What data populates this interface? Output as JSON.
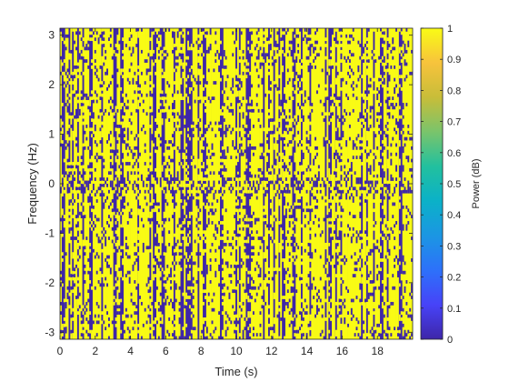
{
  "chart_data": {
    "type": "heatmap",
    "title": "",
    "xlabel": "Time (s)",
    "ylabel": "Frequency (Hz)",
    "xlim": [
      0,
      20
    ],
    "ylim": [
      -3.14159,
      3.14159
    ],
    "x_ticks": [
      0,
      2,
      4,
      6,
      8,
      10,
      12,
      14,
      16,
      18
    ],
    "y_ticks": [
      -3,
      -2,
      -1,
      0,
      1,
      2,
      3
    ],
    "colorbar": {
      "label": "Power (dB)",
      "range": [
        0,
        1
      ],
      "ticks": [
        0,
        0.1,
        0.2,
        0.3,
        0.4,
        0.5,
        0.6,
        0.7,
        0.8,
        0.9,
        1
      ],
      "colormap": [
        "#3e26a8",
        "#4743f8",
        "#2d71fa",
        "#1b96e3",
        "#0bb1c8",
        "#22c09e",
        "#7ac46b",
        "#c8bd39",
        "#f7c33c",
        "#f9fb15"
      ]
    },
    "value_colors": {
      "low": "#3e26a8",
      "high": "#f9fb15"
    },
    "grid": false,
    "time_columns": [
      1,
      0,
      0,
      1,
      1,
      0,
      1,
      0,
      1,
      1,
      0,
      1,
      1,
      0,
      1,
      1,
      1,
      0,
      0,
      1,
      1,
      1,
      1,
      1,
      0,
      1,
      1,
      1,
      1,
      1,
      1,
      0,
      0,
      1,
      1,
      0,
      0,
      1,
      1,
      1,
      1,
      1,
      1,
      1,
      1,
      0,
      1,
      1,
      1,
      1,
      1,
      1,
      0,
      1,
      0,
      0,
      1,
      1,
      1,
      0,
      0,
      1,
      1,
      1,
      1,
      1,
      0,
      1,
      1,
      1,
      0,
      0,
      1,
      0,
      0,
      0,
      0,
      1,
      1,
      1,
      0,
      1,
      1,
      0,
      0,
      1,
      1,
      1,
      1,
      1,
      1,
      1,
      1,
      0,
      0,
      1,
      1,
      1,
      1,
      1,
      1,
      1,
      0,
      1,
      0,
      1,
      1,
      1,
      0,
      0,
      0,
      1,
      1,
      1,
      1,
      1,
      1,
      1,
      0,
      1,
      1,
      0,
      1,
      1,
      0,
      1,
      1,
      0,
      1,
      0,
      0,
      1,
      1,
      1,
      1,
      0,
      0,
      1,
      1,
      1,
      0,
      1,
      1,
      1,
      1,
      0,
      1,
      1,
      1,
      1,
      1,
      1,
      1,
      1,
      0,
      1,
      0,
      0,
      1,
      1,
      0,
      1,
      1,
      0,
      1,
      1,
      1,
      1,
      1,
      1,
      1,
      1,
      1,
      1,
      1,
      0,
      1,
      1,
      0,
      1,
      1,
      1,
      0,
      1,
      1,
      1,
      0,
      0,
      1,
      1,
      0,
      1,
      1,
      1,
      1,
      1,
      1,
      0,
      0,
      1,
      1,
      1,
      1,
      1,
      1
    ]
  }
}
